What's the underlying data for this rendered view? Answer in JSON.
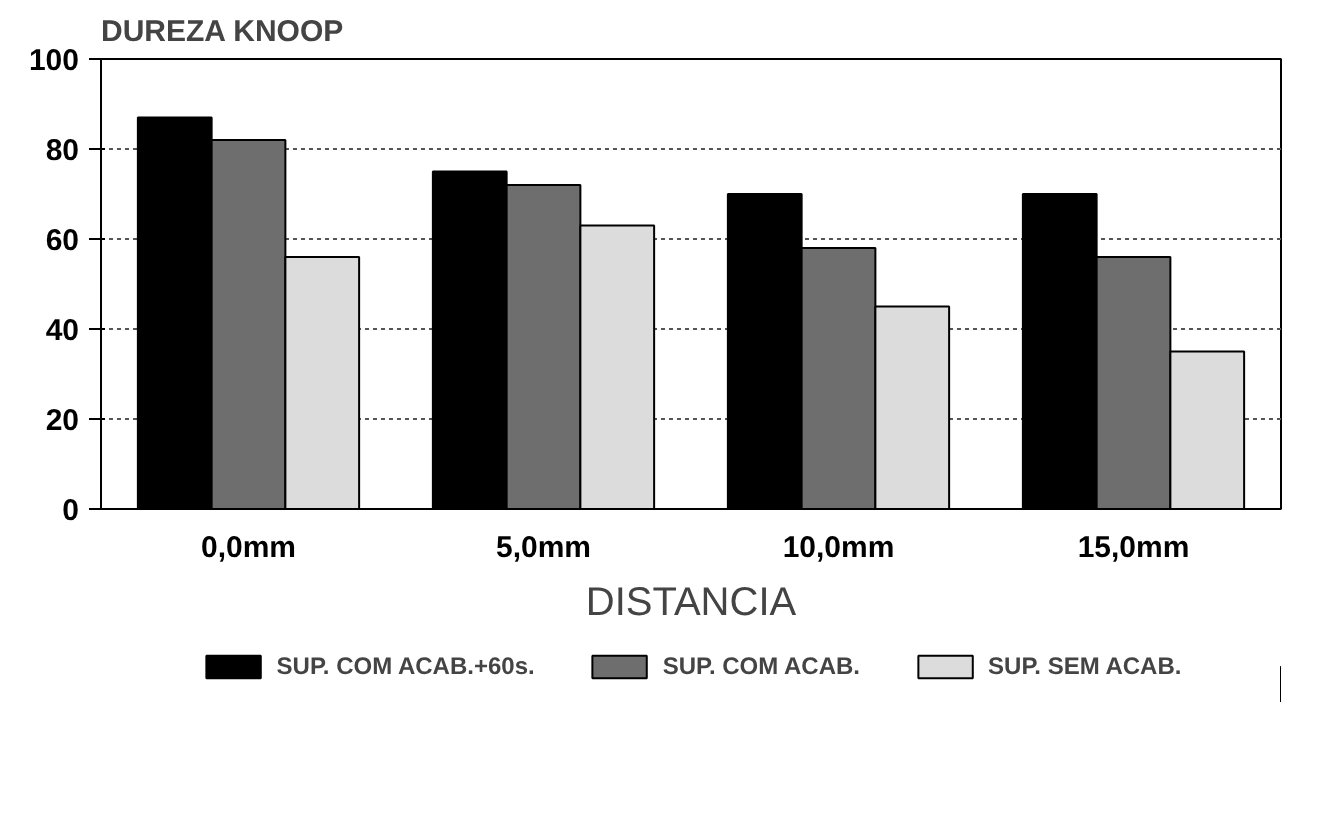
{
  "chart_data": {
    "type": "bar",
    "ylabel": "DUREZA KNOOP",
    "xlabel": "DISTANCIA",
    "categories": [
      "0,0mm",
      "5,0mm",
      "10,0mm",
      "15,0mm"
    ],
    "series": [
      {
        "name": "SUP. COM ACAB.+60s.",
        "color": "#000000",
        "values": [
          87,
          75,
          70,
          70
        ]
      },
      {
        "name": "SUP. COM ACAB.",
        "color": "#6e6e6e",
        "values": [
          82,
          72,
          58,
          56
        ]
      },
      {
        "name": "SUP. SEM ACAB.",
        "color": "#dcdcdc",
        "values": [
          56,
          63,
          45,
          35
        ]
      }
    ],
    "ylim": [
      0,
      100
    ],
    "yticks": [
      0,
      20,
      40,
      60,
      80,
      100
    ],
    "grid": "y",
    "legend": "bottom"
  }
}
